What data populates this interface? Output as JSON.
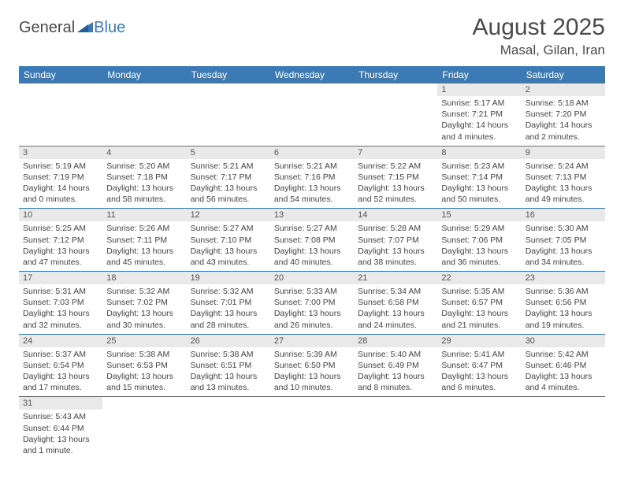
{
  "logo": {
    "part1": "General",
    "part2": "Blue"
  },
  "header": {
    "title": "August 2025",
    "location": "Masal, Gilan, Iran"
  },
  "colors": {
    "header_bg": "#3b7ab5",
    "header_text": "#ffffff",
    "daynum_bg": "#e9e9e9",
    "row_border": "#3b7ab5",
    "text": "#444444"
  },
  "fonts": {
    "title_size_pt": 22,
    "location_size_pt": 13,
    "header_size_pt": 9,
    "cell_size_pt": 8
  },
  "dayNames": [
    "Sunday",
    "Monday",
    "Tuesday",
    "Wednesday",
    "Thursday",
    "Friday",
    "Saturday"
  ],
  "weeks": [
    [
      null,
      null,
      null,
      null,
      null,
      {
        "n": "1",
        "rise": "5:17 AM",
        "set": "7:21 PM",
        "dl": "14 hours and 4 minutes."
      },
      {
        "n": "2",
        "rise": "5:18 AM",
        "set": "7:20 PM",
        "dl": "14 hours and 2 minutes."
      }
    ],
    [
      {
        "n": "3",
        "rise": "5:19 AM",
        "set": "7:19 PM",
        "dl": "14 hours and 0 minutes."
      },
      {
        "n": "4",
        "rise": "5:20 AM",
        "set": "7:18 PM",
        "dl": "13 hours and 58 minutes."
      },
      {
        "n": "5",
        "rise": "5:21 AM",
        "set": "7:17 PM",
        "dl": "13 hours and 56 minutes."
      },
      {
        "n": "6",
        "rise": "5:21 AM",
        "set": "7:16 PM",
        "dl": "13 hours and 54 minutes."
      },
      {
        "n": "7",
        "rise": "5:22 AM",
        "set": "7:15 PM",
        "dl": "13 hours and 52 minutes."
      },
      {
        "n": "8",
        "rise": "5:23 AM",
        "set": "7:14 PM",
        "dl": "13 hours and 50 minutes."
      },
      {
        "n": "9",
        "rise": "5:24 AM",
        "set": "7:13 PM",
        "dl": "13 hours and 49 minutes."
      }
    ],
    [
      {
        "n": "10",
        "rise": "5:25 AM",
        "set": "7:12 PM",
        "dl": "13 hours and 47 minutes."
      },
      {
        "n": "11",
        "rise": "5:26 AM",
        "set": "7:11 PM",
        "dl": "13 hours and 45 minutes."
      },
      {
        "n": "12",
        "rise": "5:27 AM",
        "set": "7:10 PM",
        "dl": "13 hours and 43 minutes."
      },
      {
        "n": "13",
        "rise": "5:27 AM",
        "set": "7:08 PM",
        "dl": "13 hours and 40 minutes."
      },
      {
        "n": "14",
        "rise": "5:28 AM",
        "set": "7:07 PM",
        "dl": "13 hours and 38 minutes."
      },
      {
        "n": "15",
        "rise": "5:29 AM",
        "set": "7:06 PM",
        "dl": "13 hours and 36 minutes."
      },
      {
        "n": "16",
        "rise": "5:30 AM",
        "set": "7:05 PM",
        "dl": "13 hours and 34 minutes."
      }
    ],
    [
      {
        "n": "17",
        "rise": "5:31 AM",
        "set": "7:03 PM",
        "dl": "13 hours and 32 minutes."
      },
      {
        "n": "18",
        "rise": "5:32 AM",
        "set": "7:02 PM",
        "dl": "13 hours and 30 minutes."
      },
      {
        "n": "19",
        "rise": "5:32 AM",
        "set": "7:01 PM",
        "dl": "13 hours and 28 minutes."
      },
      {
        "n": "20",
        "rise": "5:33 AM",
        "set": "7:00 PM",
        "dl": "13 hours and 26 minutes."
      },
      {
        "n": "21",
        "rise": "5:34 AM",
        "set": "6:58 PM",
        "dl": "13 hours and 24 minutes."
      },
      {
        "n": "22",
        "rise": "5:35 AM",
        "set": "6:57 PM",
        "dl": "13 hours and 21 minutes."
      },
      {
        "n": "23",
        "rise": "5:36 AM",
        "set": "6:56 PM",
        "dl": "13 hours and 19 minutes."
      }
    ],
    [
      {
        "n": "24",
        "rise": "5:37 AM",
        "set": "6:54 PM",
        "dl": "13 hours and 17 minutes."
      },
      {
        "n": "25",
        "rise": "5:38 AM",
        "set": "6:53 PM",
        "dl": "13 hours and 15 minutes."
      },
      {
        "n": "26",
        "rise": "5:38 AM",
        "set": "6:51 PM",
        "dl": "13 hours and 13 minutes."
      },
      {
        "n": "27",
        "rise": "5:39 AM",
        "set": "6:50 PM",
        "dl": "13 hours and 10 minutes."
      },
      {
        "n": "28",
        "rise": "5:40 AM",
        "set": "6:49 PM",
        "dl": "13 hours and 8 minutes."
      },
      {
        "n": "29",
        "rise": "5:41 AM",
        "set": "6:47 PM",
        "dl": "13 hours and 6 minutes."
      },
      {
        "n": "30",
        "rise": "5:42 AM",
        "set": "6:46 PM",
        "dl": "13 hours and 4 minutes."
      }
    ],
    [
      {
        "n": "31",
        "rise": "5:43 AM",
        "set": "6:44 PM",
        "dl": "13 hours and 1 minute."
      },
      null,
      null,
      null,
      null,
      null,
      null
    ]
  ],
  "labels": {
    "sunrise": "Sunrise:",
    "sunset": "Sunset:",
    "daylight": "Daylight:"
  }
}
